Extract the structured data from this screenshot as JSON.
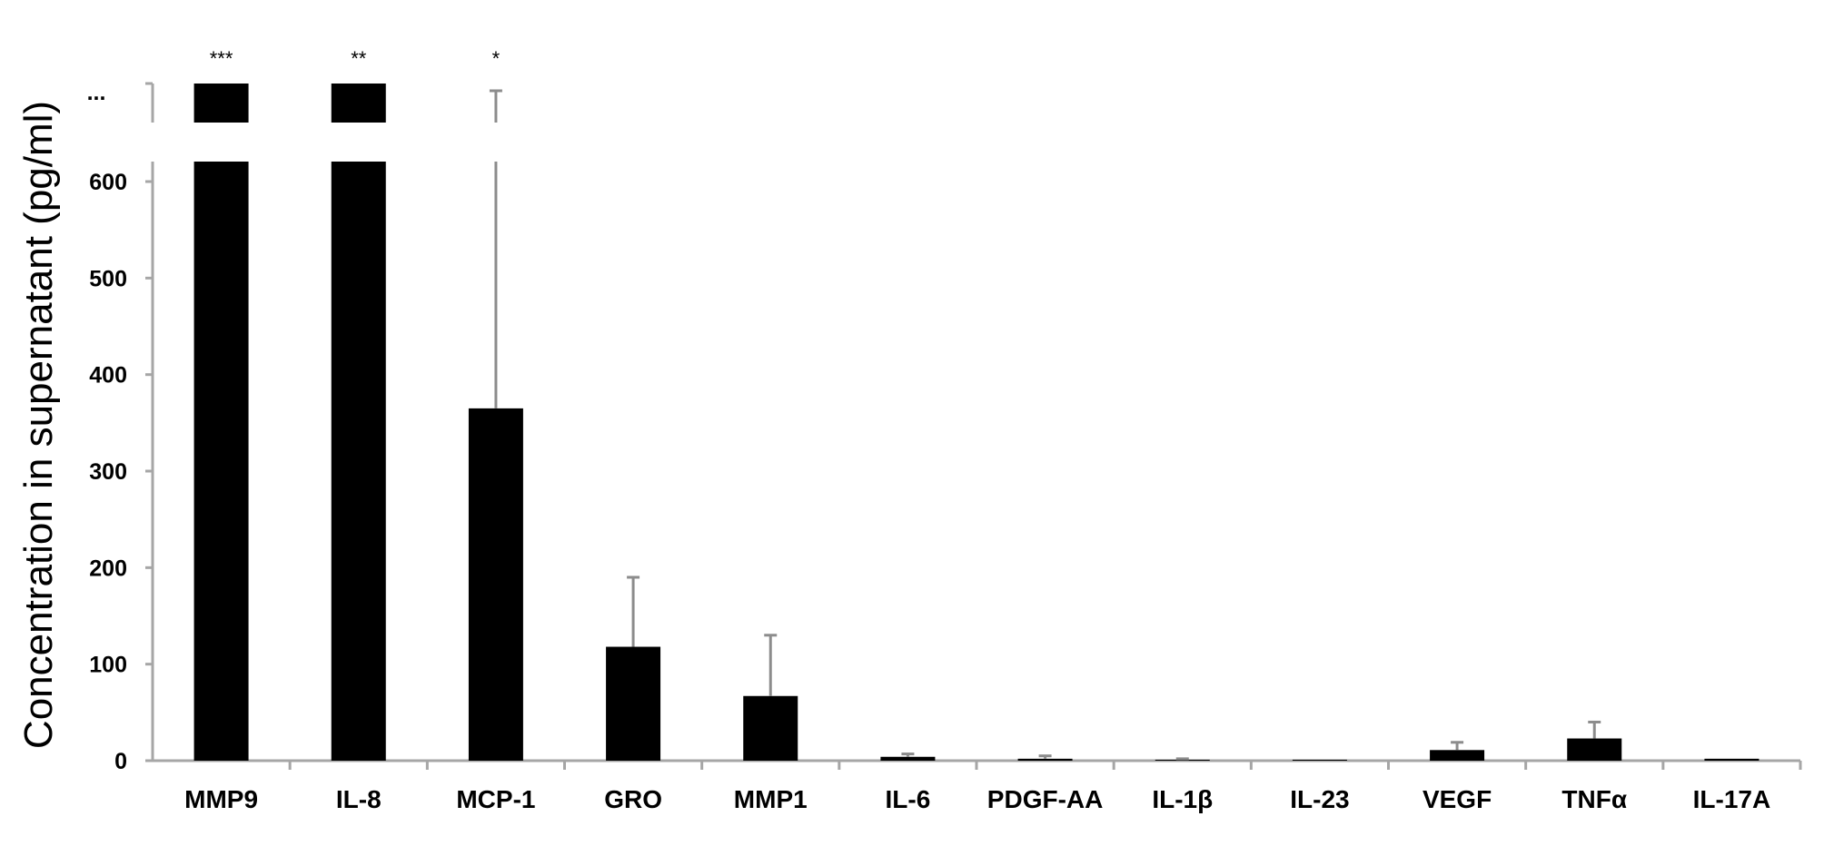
{
  "chart_data": {
    "type": "bar",
    "title": "",
    "xlabel": "",
    "ylabel": "Concentration in supernatant (pg/ml)",
    "ylim": [
      0,
      600
    ],
    "yticks": [
      0,
      100,
      200,
      300,
      400,
      500,
      600
    ],
    "axis_break": true,
    "break_label": "...",
    "grid": false,
    "legend": "none",
    "bar_color": "#000000",
    "error_bar_color": "#8c8c8c",
    "categories": [
      "MMP9",
      "IL-8",
      "MCP-1",
      "GRO",
      "MMP1",
      "IL-6",
      "PDGF-AA",
      "IL-1β",
      "IL-23",
      "VEGF",
      "TNFα",
      "IL-17A"
    ],
    "values": [
      ">600",
      ">600",
      365,
      118,
      67,
      4,
      2,
      1,
      1,
      11,
      23,
      2
    ],
    "error_upper": [
      null,
      null,
      695,
      190,
      130,
      7,
      5,
      2,
      1,
      19,
      40,
      2
    ],
    "truncated": [
      true,
      true,
      false,
      false,
      false,
      false,
      false,
      false,
      false,
      false,
      false,
      false
    ],
    "significance": [
      "***",
      "**",
      "*",
      "",
      "",
      "",
      "",
      "",
      "",
      "",
      "",
      ""
    ]
  }
}
